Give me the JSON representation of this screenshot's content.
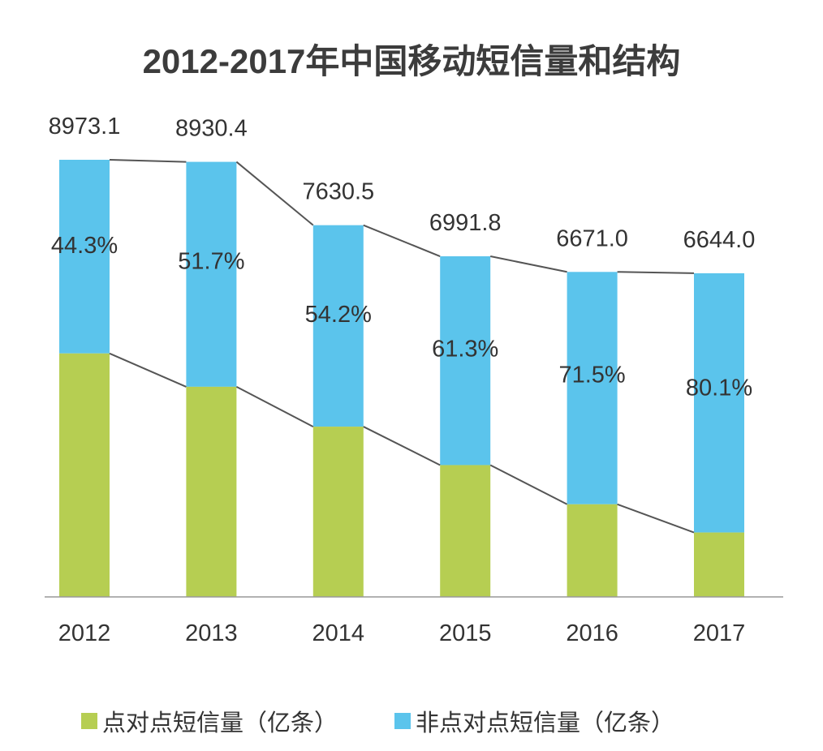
{
  "chart_data": {
    "type": "bar",
    "stacked": true,
    "title": "2012-2017年中国移动短信量和结构",
    "categories": [
      "2012",
      "2013",
      "2014",
      "2015",
      "2016",
      "2017"
    ],
    "totals": [
      8973.1,
      8930.4,
      7630.5,
      6991.8,
      6671.0,
      6644.0
    ],
    "total_labels": [
      "8973.1",
      "8930.4",
      "7630.5",
      "6991.8",
      "6671.0",
      "6644.0"
    ],
    "non_p2p_share_percent": [
      44.3,
      51.7,
      54.2,
      61.3,
      71.5,
      80.1
    ],
    "share_labels": [
      "44.3%",
      "51.7%",
      "54.2%",
      "61.3%",
      "71.5%",
      "80.1%"
    ],
    "series": [
      {
        "name": "点对点短信量（亿条）",
        "color": "#b6ce52"
      },
      {
        "name": "非点对点短信量（亿条）",
        "color": "#5bc4ec"
      }
    ],
    "ylim": [
      0,
      8973.1
    ],
    "grid": false,
    "legend": "bottom",
    "connector_lines": true
  }
}
